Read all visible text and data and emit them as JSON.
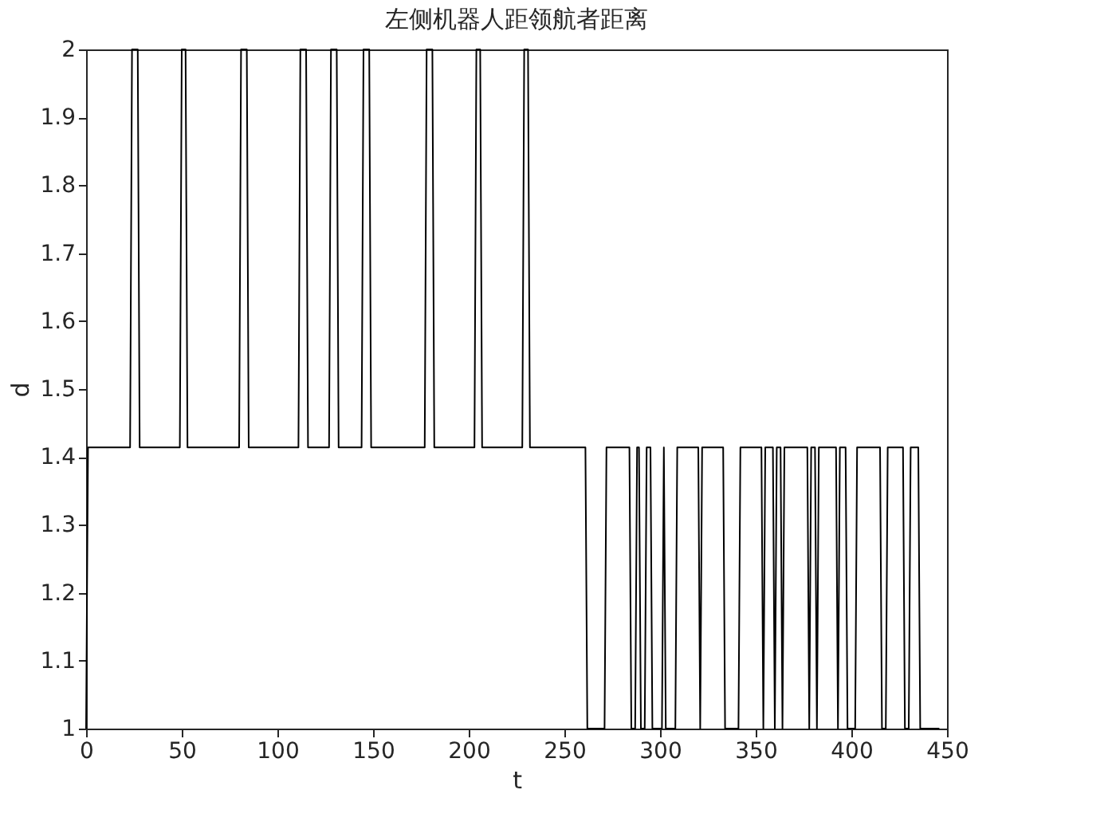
{
  "chart_data": {
    "type": "line",
    "title": "左侧机器人距领航者距离",
    "xlabel": "t",
    "ylabel": "d",
    "x": [
      0,
      1,
      23,
      24,
      27,
      28,
      49,
      50,
      52,
      53,
      80,
      81,
      84,
      85,
      111,
      112,
      115,
      116,
      127,
      128,
      131,
      132,
      144,
      145,
      148,
      149,
      177,
      178,
      181,
      182,
      203,
      204,
      206,
      207,
      228,
      229,
      231,
      232,
      261,
      262,
      271,
      272,
      284,
      285,
      287,
      288,
      289,
      290,
      292,
      293,
      295,
      296,
      301,
      302,
      303,
      308,
      309,
      320,
      321,
      322,
      333,
      334,
      341,
      342,
      353,
      354,
      355,
      359,
      360,
      361,
      363,
      364,
      365,
      377,
      378,
      379,
      381,
      382,
      383,
      392,
      393,
      394,
      397,
      398,
      402,
      403,
      415,
      416,
      418,
      419,
      427,
      428,
      430,
      431,
      435,
      436,
      446
    ],
    "series": [
      {
        "color": "#000000",
        "values": [
          1,
          1.414,
          1.414,
          2,
          2,
          1.414,
          1.414,
          2,
          2,
          1.414,
          1.414,
          2,
          2,
          1.414,
          1.414,
          2,
          2,
          1.414,
          1.414,
          2,
          2,
          1.414,
          1.414,
          2,
          2,
          1.414,
          1.414,
          2,
          2,
          1.414,
          1.414,
          2,
          2,
          1.414,
          1.414,
          2,
          2,
          1.414,
          1.414,
          1,
          1,
          1.414,
          1.414,
          1,
          1,
          1.414,
          1.414,
          1,
          1,
          1.414,
          1.414,
          1,
          1,
          1.414,
          1,
          1,
          1.414,
          1.414,
          1,
          1.414,
          1.414,
          1,
          1,
          1.414,
          1.414,
          1,
          1.414,
          1.414,
          1,
          1.414,
          1.414,
          1,
          1.414,
          1.414,
          1,
          1.414,
          1.414,
          1,
          1.414,
          1.414,
          1,
          1.414,
          1.414,
          1,
          1,
          1.414,
          1.414,
          1,
          1,
          1.414,
          1.414,
          1,
          1,
          1.414,
          1.414,
          1,
          1
        ]
      }
    ],
    "xlim": [
      0,
      450
    ],
    "xticks": [
      0,
      50,
      100,
      150,
      200,
      250,
      300,
      350,
      400,
      450
    ],
    "ylim": [
      1,
      2
    ],
    "yticks": [
      1,
      1.1,
      1.2,
      1.3,
      1.4,
      1.5,
      1.6,
      1.7,
      1.8,
      1.9,
      2
    ],
    "grid": false,
    "legend": false,
    "marker": "none",
    "line_style": "solid"
  }
}
